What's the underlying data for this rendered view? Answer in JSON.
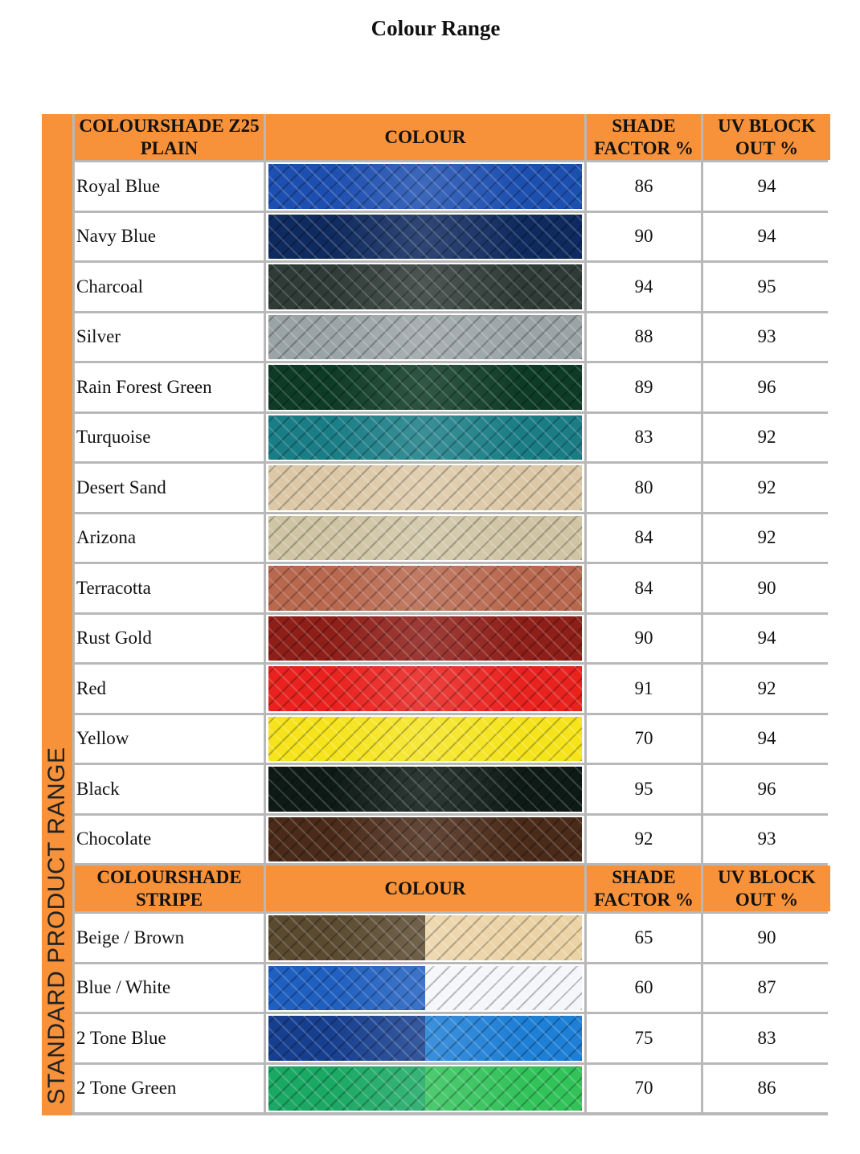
{
  "title": "Colour Range",
  "side_label": "STANDARD PRODUCT RANGE",
  "accent": "#f7923a",
  "plain": {
    "header": {
      "name": "COLOURSHADE Z25 PLAIN",
      "colour": "COLOUR",
      "shade": "SHADE FACTOR %",
      "uv": "UV BLOCK OUT %"
    },
    "rows": [
      {
        "name": "Royal Blue",
        "colors": [
          "#1d4fb0"
        ],
        "shade": "86",
        "uv": "94"
      },
      {
        "name": "Navy Blue",
        "colors": [
          "#0f2a5e"
        ],
        "shade": "90",
        "uv": "94"
      },
      {
        "name": "Charcoal",
        "colors": [
          "#2f3b37"
        ],
        "shade": "94",
        "uv": "95"
      },
      {
        "name": "Silver",
        "colors": [
          "#9aa3a6"
        ],
        "shade": "88",
        "uv": "93"
      },
      {
        "name": "Rain Forest Green",
        "colors": [
          "#0e3b26"
        ],
        "shade": "89",
        "uv": "96"
      },
      {
        "name": "Turquoise",
        "colors": [
          "#1a7d86"
        ],
        "shade": "83",
        "uv": "92"
      },
      {
        "name": "Desert Sand",
        "colors": [
          "#dcc8a6"
        ],
        "shade": "80",
        "uv": "92"
      },
      {
        "name": "Arizona",
        "colors": [
          "#cfc4a4"
        ],
        "shade": "84",
        "uv": "92"
      },
      {
        "name": "Terracotta",
        "colors": [
          "#b8684e"
        ],
        "shade": "84",
        "uv": "90"
      },
      {
        "name": "Rust Gold",
        "colors": [
          "#8e1e18"
        ],
        "shade": "90",
        "uv": "94"
      },
      {
        "name": "Red",
        "colors": [
          "#e8221e"
        ],
        "shade": "91",
        "uv": "92"
      },
      {
        "name": "Yellow",
        "colors": [
          "#f5e41c"
        ],
        "shade": "70",
        "uv": "94"
      },
      {
        "name": "Black",
        "colors": [
          "#0d1a16"
        ],
        "shade": "95",
        "uv": "96"
      },
      {
        "name": "Chocolate",
        "colors": [
          "#4a2a18"
        ],
        "shade": "92",
        "uv": "93"
      }
    ]
  },
  "stripe": {
    "header": {
      "name": "COLOURSHADE STRIPE",
      "colour": "COLOUR",
      "shade": "SHADE FACTOR %",
      "uv": "UV BLOCK OUT %"
    },
    "rows": [
      {
        "name": "Beige / Brown",
        "colors": [
          "#5a4a30",
          "#ecd3a6"
        ],
        "shade": "65",
        "uv": "90"
      },
      {
        "name": "Blue / White",
        "colors": [
          "#1f5fc0",
          "#f4f6fa"
        ],
        "shade": "60",
        "uv": "87"
      },
      {
        "name": "2 Tone Blue",
        "colors": [
          "#173f8f",
          "#1e7fd6"
        ],
        "shade": "75",
        "uv": "83"
      },
      {
        "name": "2 Tone Green",
        "colors": [
          "#1aa864",
          "#32c25a"
        ],
        "shade": "70",
        "uv": "86"
      }
    ]
  }
}
